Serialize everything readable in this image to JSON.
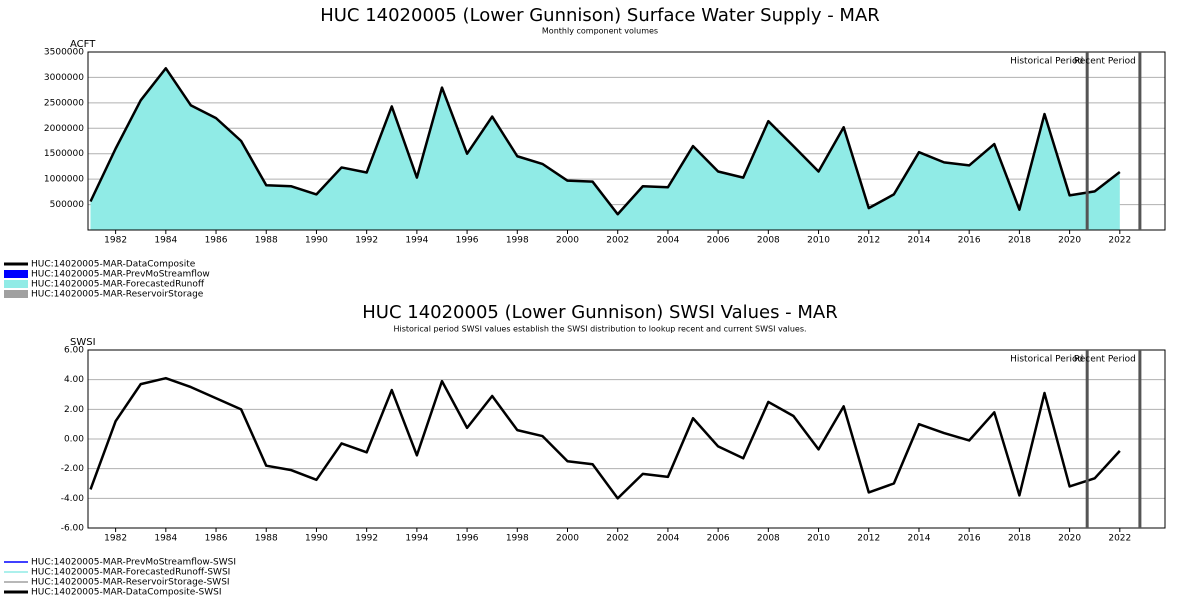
{
  "chart_data": [
    {
      "type": "area",
      "title": "HUC 14020005 (Lower Gunnison) Surface Water Supply - MAR",
      "subtitle": "Monthly component volumes",
      "ylabel": "ACFT",
      "x": [
        1981,
        1982,
        1983,
        1984,
        1985,
        1986,
        1987,
        1988,
        1989,
        1990,
        1991,
        1992,
        1993,
        1994,
        1995,
        1996,
        1997,
        1998,
        1999,
        2000,
        2001,
        2002,
        2003,
        2004,
        2005,
        2006,
        2007,
        2008,
        2009,
        2010,
        2011,
        2012,
        2013,
        2014,
        2015,
        2016,
        2017,
        2018,
        2019,
        2020,
        2021,
        2022
      ],
      "series": [
        {
          "name": "HUC:14020005-MAR-DataComposite",
          "color": "#000000",
          "style": "line",
          "values": [
            560000,
            1600000,
            2550000,
            3180000,
            2450000,
            2200000,
            1750000,
            880000,
            860000,
            700000,
            1230000,
            1130000,
            2430000,
            1030000,
            2800000,
            1500000,
            2230000,
            1450000,
            1300000,
            970000,
            950000,
            310000,
            860000,
            840000,
            1650000,
            1150000,
            1030000,
            2140000,
            1650000,
            1150000,
            2020000,
            430000,
            700000,
            1530000,
            1330000,
            1270000,
            1690000,
            400000,
            2280000,
            680000,
            760000,
            1140000
          ]
        },
        {
          "name": "HUC:14020005-MAR-PrevMoStreamflow",
          "color": "#0000ff",
          "style": "area"
        },
        {
          "name": "HUC:14020005-MAR-ForecastedRunoff",
          "color": "#90ebe6",
          "style": "area",
          "values": [
            560000,
            1600000,
            2550000,
            3180000,
            2450000,
            2200000,
            1750000,
            880000,
            860000,
            700000,
            1230000,
            1130000,
            2430000,
            1030000,
            2800000,
            1500000,
            2230000,
            1450000,
            1300000,
            970000,
            950000,
            310000,
            860000,
            840000,
            1650000,
            1150000,
            1030000,
            2140000,
            1650000,
            1150000,
            2020000,
            430000,
            700000,
            1530000,
            1330000,
            1270000,
            1690000,
            400000,
            2280000,
            680000,
            760000,
            1140000
          ]
        },
        {
          "name": "HUC:14020005-MAR-ReservoirStorage",
          "color": "#a0a0a0",
          "style": "area"
        }
      ],
      "xlim": [
        1980.9,
        2023.8
      ],
      "xticks": [
        1982,
        1984,
        1986,
        1988,
        1990,
        1992,
        1994,
        1996,
        1998,
        2000,
        2002,
        2004,
        2006,
        2008,
        2010,
        2012,
        2014,
        2016,
        2018,
        2020,
        2022
      ],
      "ylim": [
        0,
        3500000
      ],
      "yticks": [
        500000,
        1000000,
        1500000,
        2000000,
        2500000,
        3000000,
        3500000
      ],
      "grid": true,
      "annotations": [
        "Historical Period",
        "Recent Period"
      ],
      "period_lines": [
        2020.7,
        2022.8
      ]
    },
    {
      "type": "line",
      "title": "HUC 14020005 (Lower Gunnison) SWSI Values - MAR",
      "subtitle": "Historical period SWSI values establish the SWSI distribution to lookup recent and current SWSI values.",
      "ylabel": "SWSI",
      "x": [
        1981,
        1982,
        1983,
        1984,
        1985,
        1986,
        1987,
        1988,
        1989,
        1990,
        1991,
        1992,
        1993,
        1994,
        1995,
        1996,
        1997,
        1998,
        1999,
        2000,
        2001,
        2002,
        2003,
        2004,
        2005,
        2006,
        2007,
        2008,
        2009,
        2010,
        2011,
        2012,
        2013,
        2014,
        2015,
        2016,
        2017,
        2018,
        2019,
        2020,
        2021,
        2022
      ],
      "series": [
        {
          "name": "HUC:14020005-MAR-PrevMoStreamflow-SWSI",
          "color": "#0000ff",
          "style": "line"
        },
        {
          "name": "HUC:14020005-MAR-ForecastedRunoff-SWSI",
          "color": "#90ebe6",
          "style": "line"
        },
        {
          "name": "HUC:14020005-MAR-ReservoirStorage-SWSI",
          "color": "#a0a0a0",
          "style": "line"
        },
        {
          "name": "HUC:14020005-MAR-DataComposite-SWSI",
          "color": "#000000",
          "style": "line",
          "values": [
            -3.4,
            1.2,
            3.7,
            4.1,
            3.5,
            2.75,
            2.0,
            -1.8,
            -2.1,
            -2.75,
            -0.3,
            -0.9,
            3.3,
            -1.1,
            3.9,
            0.75,
            2.9,
            0.6,
            0.2,
            -1.5,
            -1.7,
            -4.0,
            -2.35,
            -2.55,
            1.4,
            -0.5,
            -1.3,
            2.5,
            1.55,
            -0.7,
            2.2,
            -3.6,
            -3.0,
            1.0,
            0.4,
            -0.1,
            1.8,
            -3.8,
            3.1,
            -3.2,
            -2.65,
            -0.8
          ]
        }
      ],
      "xlim": [
        1980.9,
        2023.8
      ],
      "xticks": [
        1982,
        1984,
        1986,
        1988,
        1990,
        1992,
        1994,
        1996,
        1998,
        2000,
        2002,
        2004,
        2006,
        2008,
        2010,
        2012,
        2014,
        2016,
        2018,
        2020,
        2022
      ],
      "ylim": [
        -6,
        6
      ],
      "yticks": [
        {
          "value": -6,
          "label": "-6.00"
        },
        {
          "value": -4,
          "label": "-4.00"
        },
        {
          "value": -2,
          "label": "-2.00"
        },
        {
          "value": 0,
          "label": "0.00"
        },
        {
          "value": 2,
          "label": "2.00"
        },
        {
          "value": 4,
          "label": "4.00"
        },
        {
          "value": 6,
          "label": "6.00"
        }
      ],
      "grid": true,
      "annotations": [
        "Historical Period",
        "Recent Period"
      ],
      "period_lines": [
        2020.7,
        2022.8
      ]
    }
  ]
}
